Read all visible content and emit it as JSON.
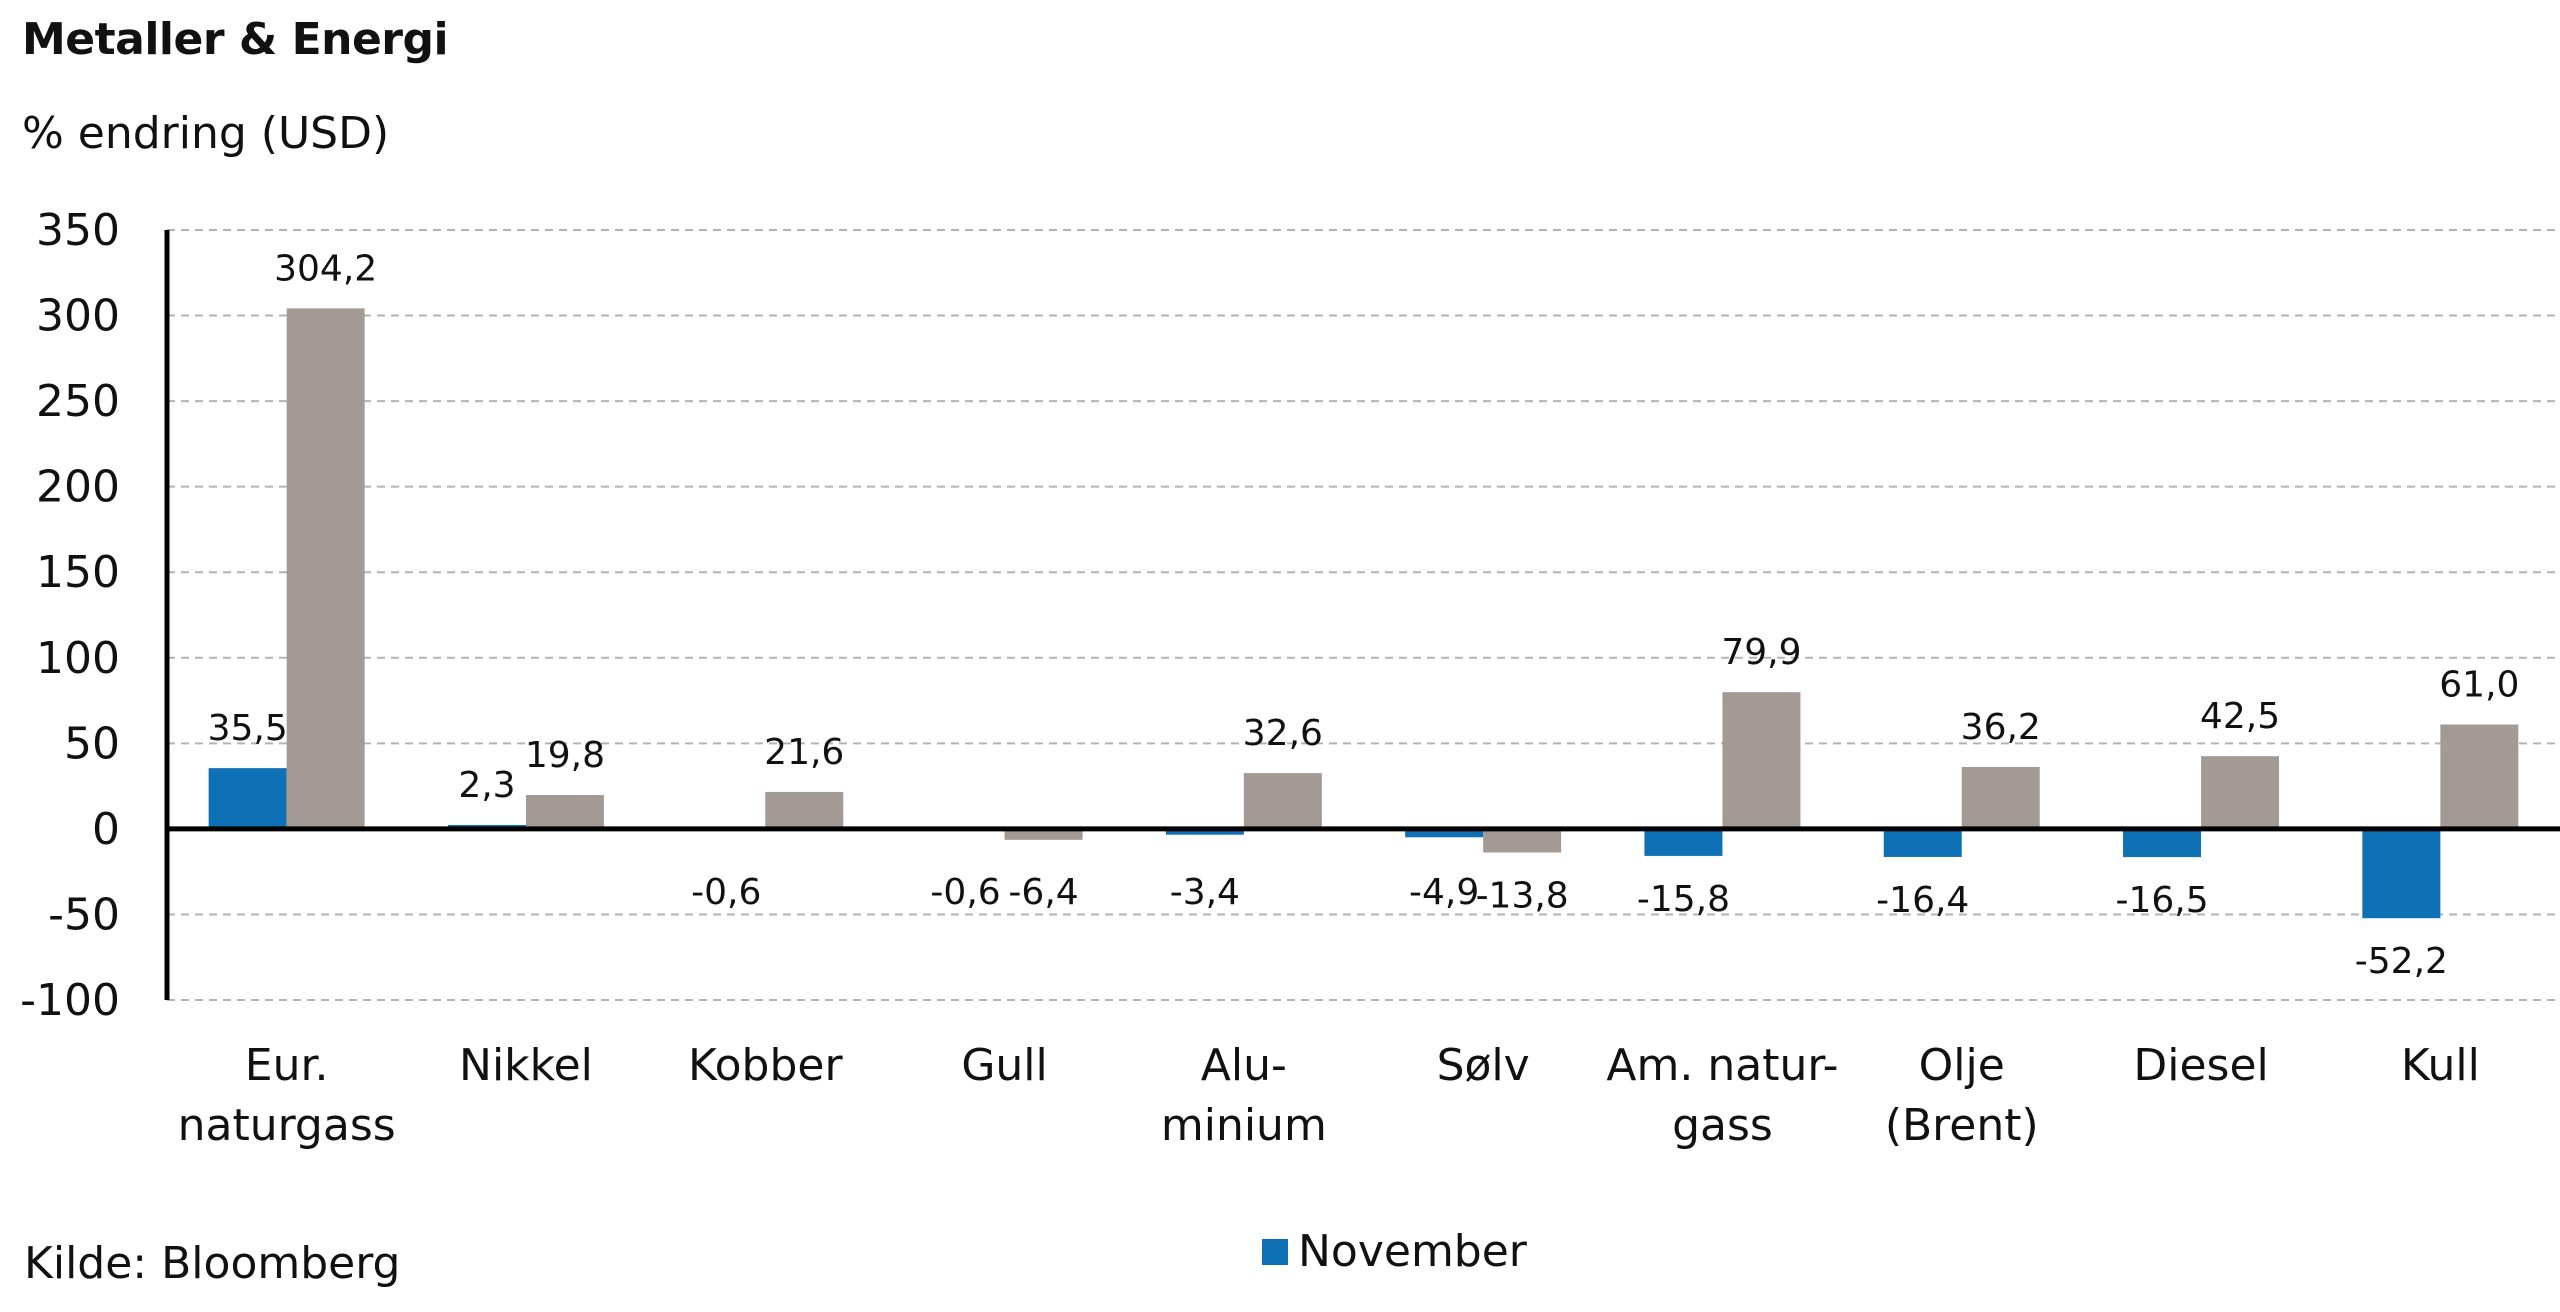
{
  "chart_data": {
    "type": "bar",
    "title": "Metaller & Energi",
    "subtitle": "% endring (USD)",
    "categories": [
      [
        "Eur.",
        "naturgass"
      ],
      [
        "Nikkel"
      ],
      [
        "Kobber"
      ],
      [
        "Gull"
      ],
      [
        "Alu-",
        "minium"
      ],
      [
        "Sølv"
      ],
      [
        "Am. natur-",
        "gass"
      ],
      [
        "Olje",
        "(Brent)"
      ],
      [
        "Diesel"
      ],
      [
        "Kull"
      ]
    ],
    "series": [
      {
        "name": "November",
        "color": "#0f71b5",
        "values": [
          35.5,
          2.3,
          -0.6,
          -0.6,
          -3.4,
          -4.9,
          -15.8,
          -16.4,
          -16.5,
          -52.2
        ],
        "labels": [
          "35,5",
          "2,3",
          "-0,6",
          "-0,6",
          "-3,4",
          "-4,9",
          "-15,8",
          "-16,4",
          "-16,5",
          "-52,2"
        ]
      },
      {
        "color": "#a39a95",
        "values": [
          304.2,
          19.8,
          21.6,
          -6.4,
          32.6,
          -13.8,
          79.9,
          36.2,
          42.5,
          61.0
        ],
        "labels": [
          "304,2",
          "19,8",
          "21,6",
          "-6,4",
          "32,6",
          "-13,8",
          "79,9",
          "36,2",
          "42,5",
          "61,0"
        ]
      }
    ],
    "yticks": [
      "350",
      "300",
      "250",
      "200",
      "150",
      "100",
      "50",
      "0",
      "-50",
      "-100"
    ],
    "ylim": [
      -100,
      350
    ],
    "grid": true,
    "legend_position": "bottom-center"
  },
  "footer": {
    "source": "Kilde: Bloomberg"
  }
}
